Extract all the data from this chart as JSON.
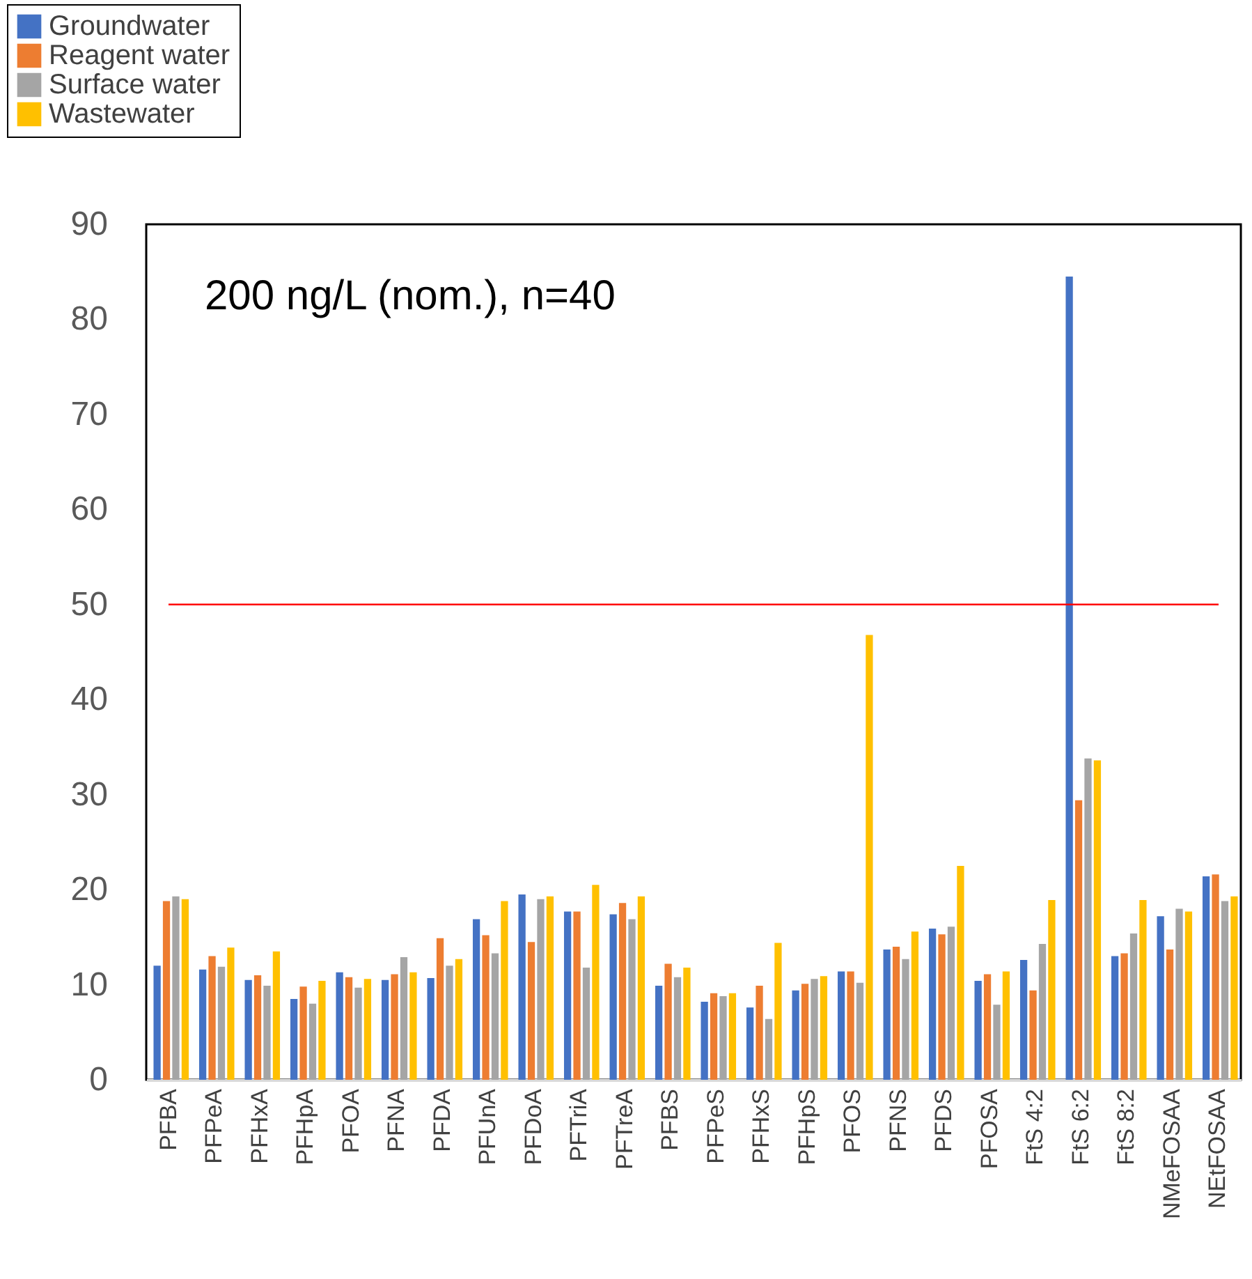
{
  "chart_data": {
    "type": "bar",
    "categories": [
      "PFBA",
      "PFPeA",
      "PFHxA",
      "PFHpA",
      "PFOA",
      "PFNA",
      "PFDA",
      "PFUnA",
      "PFDoA",
      "PFTriA",
      "PFTreA",
      "PFBS",
      "PFPeS",
      "PFHxS",
      "PFHpS",
      "PFOS",
      "PFNS",
      "PFDS",
      "PFOSA",
      "FtS 4:2",
      "FtS 6:2",
      "FtS 8:2",
      "NMeFOSAA",
      "NEtFOSAA"
    ],
    "series": [
      {
        "name": "Groundwater",
        "color": "#4472c4",
        "values": [
          12.0,
          11.6,
          10.5,
          8.5,
          11.3,
          10.5,
          10.7,
          16.9,
          19.5,
          17.7,
          17.4,
          9.9,
          8.2,
          7.6,
          9.4,
          11.4,
          13.7,
          15.9,
          10.4,
          12.6,
          84.5,
          13.0,
          17.2,
          21.4
        ]
      },
      {
        "name": "Reagent water",
        "color": "#ed7d31",
        "values": [
          18.8,
          13.0,
          11.0,
          9.8,
          10.8,
          11.1,
          14.9,
          15.2,
          14.5,
          17.7,
          18.6,
          12.2,
          9.1,
          9.9,
          10.1,
          11.4,
          14.0,
          15.3,
          11.1,
          9.4,
          29.4,
          13.3,
          13.7,
          21.6
        ]
      },
      {
        "name": "Surface water",
        "color": "#a5a5a5",
        "values": [
          19.3,
          11.9,
          9.9,
          8.0,
          9.7,
          12.9,
          12.0,
          13.3,
          19.0,
          11.8,
          16.9,
          10.8,
          8.8,
          6.4,
          10.6,
          10.2,
          12.7,
          16.1,
          7.9,
          14.3,
          33.8,
          15.4,
          18.0,
          18.8
        ]
      },
      {
        "name": "Wastewater",
        "color": "#ffc000",
        "values": [
          19.0,
          13.9,
          13.5,
          10.4,
          10.6,
          11.3,
          12.7,
          18.8,
          19.3,
          20.5,
          19.3,
          11.8,
          9.1,
          14.4,
          10.9,
          46.8,
          15.6,
          22.5,
          11.4,
          18.9,
          33.6,
          18.9,
          17.7,
          19.3
        ]
      }
    ],
    "ylim": [
      0,
      90
    ],
    "yticks": [
      0,
      10,
      20,
      30,
      40,
      50,
      60,
      70,
      80,
      90
    ],
    "ref_lines": [
      {
        "axis": "y",
        "value": 50,
        "color": "#ff0000"
      }
    ],
    "annotations": [
      "200 ng/L (nom.), n=40"
    ],
    "legend": "top left"
  }
}
